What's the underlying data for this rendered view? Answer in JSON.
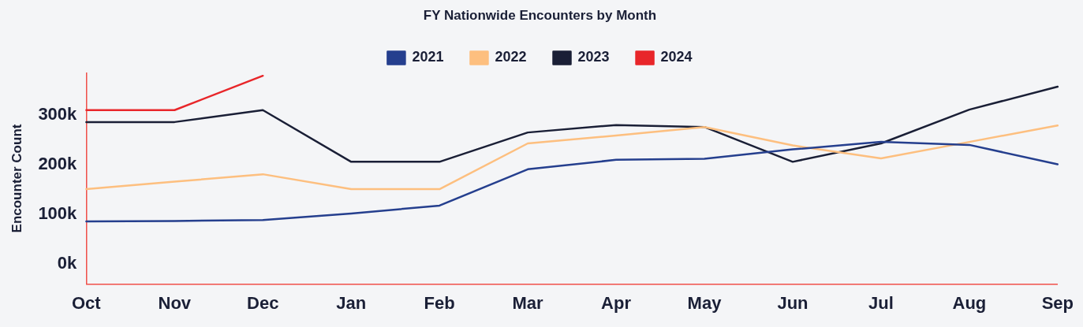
{
  "chart_data": {
    "type": "line",
    "title": "FY Nationwide Encounters by Month",
    "ylabel": "Encounter Count",
    "categories": [
      "Oct",
      "Nov",
      "Dec",
      "Jan",
      "Feb",
      "Mar",
      "Apr",
      "May",
      "Jun",
      "Jul",
      "Aug",
      "Sep"
    ],
    "series": [
      {
        "name": "2021",
        "color": "#253f8e",
        "values": [
          86000,
          87000,
          89000,
          102000,
          118000,
          191000,
          210000,
          212000,
          231000,
          246000,
          240000,
          201000
        ]
      },
      {
        "name": "2022",
        "color": "#fdbf7f",
        "values": [
          151000,
          166000,
          181000,
          151000,
          151000,
          243000,
          259000,
          276000,
          239000,
          213000,
          246000,
          279000
        ]
      },
      {
        "name": "2023",
        "color": "#1a1f36",
        "values": [
          286000,
          286000,
          310000,
          206000,
          206000,
          265000,
          280000,
          276000,
          206000,
          243000,
          311000,
          357000
        ]
      },
      {
        "name": "2024",
        "color": "#e8262a",
        "values": [
          310000,
          310000,
          379000,
          null,
          null,
          null,
          null,
          null,
          null,
          null,
          null,
          null
        ]
      }
    ],
    "ylim": [
      -40000,
      385000
    ],
    "yticks": [
      {
        "value": 0,
        "label": "0k"
      },
      {
        "value": 100000,
        "label": "100k"
      },
      {
        "value": 200000,
        "label": "200k"
      },
      {
        "value": 300000,
        "label": "300k"
      }
    ],
    "grid": false,
    "legend": "top",
    "marker": "none",
    "line_style": "solid"
  }
}
